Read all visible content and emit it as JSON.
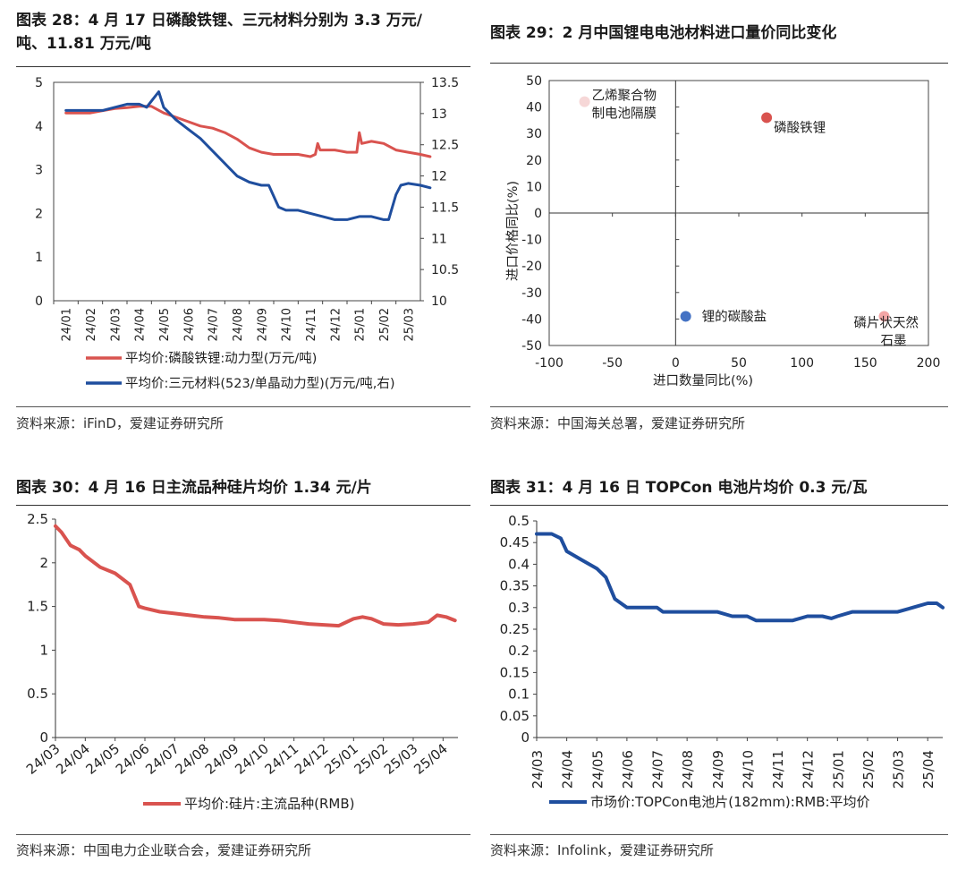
{
  "panels": [
    {
      "title_line1": "图表 28：4 月 17 日磷酸铁锂、三元材料分别为 3.3 万元/",
      "title_line2": "吨、11.81 万元/吨",
      "source": "资料来源：iFinD，爱建证券研究所"
    },
    {
      "title_line1": "图表 29：2 月中国锂电电池材料进口量价同比变化",
      "source": "资料来源：中国海关总署，爱建证券研究所"
    },
    {
      "title_line1": "图表 30：4 月 16 日主流品种硅片均价 1.34 元/片",
      "source": "资料来源：中国电力企业联合会，爱建证券研究所"
    },
    {
      "title_line1": "图表 31：4 月 16 日 TOPCon 电池片均价 0.3 元/瓦",
      "source": "资料来源：Infolink，爱建证券研究所"
    }
  ],
  "chart_data": [
    {
      "type": "line",
      "title": "",
      "x": [
        "24/01",
        "24/02",
        "24/03",
        "24/04",
        "24/05",
        "24/06",
        "24/07",
        "24/08",
        "24/09",
        "24/10",
        "24/11",
        "24/12",
        "25/01",
        "25/02",
        "25/03"
      ],
      "ylim": [
        0,
        5
      ],
      "yticks": [
        "0",
        "1",
        "2",
        "3",
        "4",
        "5"
      ],
      "y2lim": [
        10,
        13.5
      ],
      "y2ticks": [
        "10",
        "10.5",
        "11",
        "11.5",
        "12",
        "12.5",
        "13",
        "13.5"
      ],
      "series": [
        {
          "name": "平均价:磷酸铁锂:动力型(万元/吨)",
          "axis": "left",
          "color": "#d9534f",
          "values": [
            [
              0,
              4.3
            ],
            [
              0.5,
              4.3
            ],
            [
              1,
              4.3
            ],
            [
              1.5,
              4.35
            ],
            [
              2,
              4.4
            ],
            [
              2.5,
              4.42
            ],
            [
              3,
              4.45
            ],
            [
              3.5,
              4.45
            ],
            [
              4,
              4.3
            ],
            [
              4.5,
              4.2
            ],
            [
              5,
              4.1
            ],
            [
              5.5,
              4.0
            ],
            [
              6,
              3.95
            ],
            [
              6.5,
              3.85
            ],
            [
              7,
              3.7
            ],
            [
              7.5,
              3.5
            ],
            [
              8,
              3.4
            ],
            [
              8.5,
              3.35
            ],
            [
              9,
              3.35
            ],
            [
              9.5,
              3.35
            ],
            [
              10,
              3.3
            ],
            [
              10.2,
              3.35
            ],
            [
              10.3,
              3.6
            ],
            [
              10.4,
              3.45
            ],
            [
              10.6,
              3.45
            ],
            [
              11,
              3.45
            ],
            [
              11.5,
              3.4
            ],
            [
              11.9,
              3.4
            ],
            [
              12,
              3.85
            ],
            [
              12.1,
              3.6
            ],
            [
              12.5,
              3.65
            ],
            [
              13,
              3.6
            ],
            [
              13.5,
              3.45
            ],
            [
              14,
              3.4
            ],
            [
              14.5,
              3.35
            ],
            [
              14.9,
              3.3
            ]
          ]
        },
        {
          "name": "平均价:三元材料(523/单晶动力型)(万元/吨,右)",
          "axis": "right",
          "color": "#1f4e9e",
          "values": [
            [
              0,
              13.05
            ],
            [
              1,
              13.05
            ],
            [
              1.5,
              13.05
            ],
            [
              2,
              13.1
            ],
            [
              2.5,
              13.15
            ],
            [
              3,
              13.15
            ],
            [
              3.3,
              13.1
            ],
            [
              3.5,
              13.2
            ],
            [
              3.8,
              13.35
            ],
            [
              4,
              13.1
            ],
            [
              4.5,
              12.9
            ],
            [
              5,
              12.75
            ],
            [
              5.5,
              12.6
            ],
            [
              6,
              12.4
            ],
            [
              6.5,
              12.2
            ],
            [
              7,
              12.0
            ],
            [
              7.5,
              11.9
            ],
            [
              8,
              11.85
            ],
            [
              8.3,
              11.85
            ],
            [
              8.7,
              11.5
            ],
            [
              9,
              11.45
            ],
            [
              9.5,
              11.45
            ],
            [
              10,
              11.4
            ],
            [
              10.5,
              11.35
            ],
            [
              11,
              11.3
            ],
            [
              11.5,
              11.3
            ],
            [
              12,
              11.35
            ],
            [
              12.5,
              11.35
            ],
            [
              13,
              11.3
            ],
            [
              13.2,
              11.3
            ],
            [
              13.5,
              11.7
            ],
            [
              13.7,
              11.85
            ],
            [
              14,
              11.88
            ],
            [
              14.5,
              11.85
            ],
            [
              14.9,
              11.81
            ]
          ]
        }
      ]
    },
    {
      "type": "scatter",
      "title": "",
      "xlabel": "进口数量同比(%)",
      "ylabel": "进口价格同比(%)",
      "xlim": [
        -100,
        200
      ],
      "ylim": [
        -50,
        50
      ],
      "xticks": [
        "-100",
        "-50",
        "0",
        "50",
        "100",
        "150",
        "200"
      ],
      "yticks": [
        "-50",
        "-40",
        "-30",
        "-20",
        "-10",
        "0",
        "10",
        "20",
        "30",
        "40",
        "50"
      ],
      "points": [
        {
          "label1": "乙烯聚合物",
          "label2": "制电池隔膜",
          "x": -72,
          "y": 42,
          "color": "#f6d7d7"
        },
        {
          "label1": "磷酸铁锂",
          "label2": "",
          "x": 72,
          "y": 36,
          "color": "#d9534f"
        },
        {
          "label1": "锂的碳酸盐",
          "label2": "",
          "x": 8,
          "y": -39,
          "color": "#4472c4"
        },
        {
          "label1": "磷片状天然",
          "label2": "石墨",
          "x": 165,
          "y": -39,
          "color": "#f4a6a6"
        }
      ]
    },
    {
      "type": "line",
      "title": "",
      "x": [
        "24/03",
        "24/04",
        "24/05",
        "24/06",
        "24/07",
        "24/08",
        "24/09",
        "24/10",
        "24/11",
        "24/12",
        "25/01",
        "25/02",
        "25/03",
        "25/04"
      ],
      "ylim": [
        0,
        2.5
      ],
      "yticks": [
        "0",
        "0.5",
        "1",
        "1.5",
        "2",
        "2.5"
      ],
      "series": [
        {
          "name": "平均价:硅片:主流品种(RMB)",
          "color": "#d9534f",
          "values": [
            [
              0,
              2.42
            ],
            [
              0.2,
              2.35
            ],
            [
              0.5,
              2.2
            ],
            [
              0.8,
              2.15
            ],
            [
              1,
              2.08
            ],
            [
              1.5,
              1.95
            ],
            [
              2,
              1.88
            ],
            [
              2.5,
              1.75
            ],
            [
              2.8,
              1.5
            ],
            [
              3,
              1.48
            ],
            [
              3.5,
              1.44
            ],
            [
              4,
              1.42
            ],
            [
              4.5,
              1.4
            ],
            [
              5,
              1.38
            ],
            [
              5.5,
              1.37
            ],
            [
              6,
              1.35
            ],
            [
              6.5,
              1.35
            ],
            [
              7,
              1.35
            ],
            [
              7.5,
              1.34
            ],
            [
              8,
              1.32
            ],
            [
              8.5,
              1.3
            ],
            [
              9,
              1.29
            ],
            [
              9.5,
              1.28
            ],
            [
              10,
              1.36
            ],
            [
              10.3,
              1.38
            ],
            [
              10.6,
              1.36
            ],
            [
              11,
              1.3
            ],
            [
              11.5,
              1.29
            ],
            [
              12,
              1.3
            ],
            [
              12.5,
              1.32
            ],
            [
              12.8,
              1.4
            ],
            [
              13.1,
              1.38
            ],
            [
              13.4,
              1.34
            ]
          ]
        }
      ]
    },
    {
      "type": "line",
      "title": "",
      "x": [
        "24/03",
        "24/04",
        "24/05",
        "24/06",
        "24/07",
        "24/08",
        "24/09",
        "24/10",
        "24/11",
        "24/12",
        "25/01",
        "25/02",
        "25/03",
        "25/04"
      ],
      "ylim": [
        0,
        0.5
      ],
      "yticks": [
        "0",
        "0.05",
        "0.1",
        "0.15",
        "0.2",
        "0.25",
        "0.3",
        "0.35",
        "0.4",
        "0.45",
        "0.5"
      ],
      "series": [
        {
          "name": "市场价:TOPCon电池片(182mm):RMB:平均价",
          "color": "#1f4e9e",
          "values": [
            [
              0,
              0.47
            ],
            [
              0.5,
              0.47
            ],
            [
              0.8,
              0.46
            ],
            [
              1,
              0.43
            ],
            [
              1.5,
              0.41
            ],
            [
              2,
              0.39
            ],
            [
              2.3,
              0.37
            ],
            [
              2.6,
              0.32
            ],
            [
              3,
              0.3
            ],
            [
              3.5,
              0.3
            ],
            [
              4,
              0.3
            ],
            [
              4.2,
              0.29
            ],
            [
              5,
              0.29
            ],
            [
              6,
              0.29
            ],
            [
              6.5,
              0.28
            ],
            [
              7,
              0.28
            ],
            [
              7.3,
              0.27
            ],
            [
              8,
              0.27
            ],
            [
              8.5,
              0.27
            ],
            [
              9,
              0.28
            ],
            [
              9.5,
              0.28
            ],
            [
              9.8,
              0.275
            ],
            [
              10,
              0.28
            ],
            [
              10.5,
              0.29
            ],
            [
              11,
              0.29
            ],
            [
              11.5,
              0.29
            ],
            [
              12,
              0.29
            ],
            [
              12.5,
              0.3
            ],
            [
              13,
              0.31
            ],
            [
              13.3,
              0.31
            ],
            [
              13.5,
              0.3
            ]
          ]
        }
      ]
    }
  ]
}
